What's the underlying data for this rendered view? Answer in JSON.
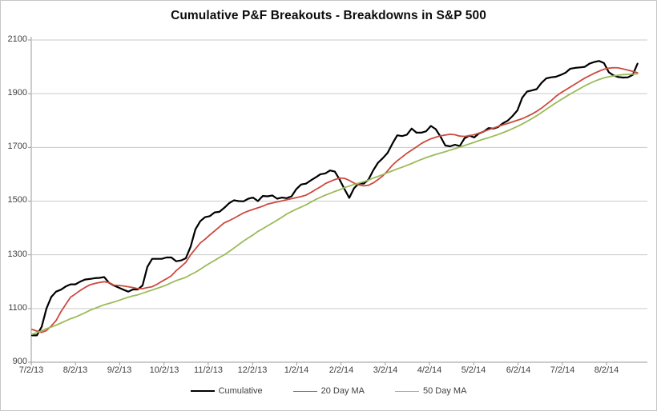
{
  "title": "Cumulative P&F Breakouts - Breakdowns in S&P 500",
  "chart_data": {
    "type": "line",
    "title": "Cumulative P&F Breakouts - Breakdowns in S&P 500",
    "xlabel": "",
    "ylabel": "",
    "ylim": [
      900,
      2100
    ],
    "grid": "horizontal",
    "legend_position": "bottom",
    "y_tick_labels": [
      2100,
      1900,
      1700,
      1500,
      1300,
      1100,
      900
    ],
    "x_tick_labels": [
      "7/2/13",
      "8/2/13",
      "9/2/13",
      "10/2/13",
      "11/2/13",
      "12/2/13",
      "1/2/14",
      "2/2/14",
      "3/2/14",
      "4/2/14",
      "5/2/14",
      "6/2/14",
      "7/2/14",
      "8/2/14"
    ],
    "sampling": {
      "t0": 0.018,
      "dt": 0.1086,
      "unit": "months-since-7/2/13"
    },
    "series": [
      {
        "name": "Cumulative",
        "color": "#000000",
        "width": 2.2,
        "values": [
          1000,
          1000,
          1032,
          1100,
          1143,
          1163,
          1170,
          1182,
          1190,
          1190,
          1200,
          1208,
          1210,
          1213,
          1214,
          1217,
          1196,
          1186,
          1178,
          1170,
          1163,
          1171,
          1171,
          1186,
          1255,
          1285,
          1285,
          1285,
          1290,
          1290,
          1276,
          1279,
          1287,
          1330,
          1395,
          1425,
          1440,
          1444,
          1458,
          1460,
          1475,
          1492,
          1503,
          1500,
          1499,
          1509,
          1513,
          1500,
          1519,
          1518,
          1521,
          1509,
          1513,
          1511,
          1518,
          1545,
          1562,
          1565,
          1577,
          1588,
          1600,
          1603,
          1614,
          1610,
          1580,
          1545,
          1512,
          1548,
          1566,
          1565,
          1580,
          1615,
          1643,
          1660,
          1680,
          1714,
          1745,
          1742,
          1747,
          1770,
          1755,
          1755,
          1760,
          1780,
          1768,
          1740,
          1707,
          1704,
          1710,
          1705,
          1734,
          1744,
          1737,
          1752,
          1759,
          1772,
          1770,
          1776,
          1790,
          1800,
          1817,
          1838,
          1885,
          1908,
          1912,
          1917,
          1940,
          1957,
          1961,
          1963,
          1970,
          1978,
          1993,
          1996,
          1998,
          2000,
          2012,
          2018,
          2022,
          2014,
          1980,
          1968,
          1962,
          1960,
          1961,
          1970,
          2012
        ]
      },
      {
        "name": "20 Day MA",
        "color": "#cc4a3f",
        "width": 1.8,
        "values": [
          1022,
          1016,
          1011,
          1018,
          1035,
          1055,
          1088,
          1115,
          1142,
          1154,
          1167,
          1178,
          1188,
          1193,
          1197,
          1200,
          1197,
          1187,
          1186,
          1184,
          1181,
          1178,
          1174,
          1174,
          1178,
          1181,
          1190,
          1201,
          1211,
          1222,
          1241,
          1256,
          1272,
          1300,
          1322,
          1344,
          1358,
          1374,
          1389,
          1404,
          1419,
          1427,
          1436,
          1446,
          1456,
          1463,
          1469,
          1475,
          1481,
          1489,
          1493,
          1497,
          1501,
          1505,
          1509,
          1513,
          1517,
          1522,
          1532,
          1543,
          1553,
          1565,
          1573,
          1580,
          1586,
          1585,
          1577,
          1567,
          1560,
          1557,
          1559,
          1568,
          1580,
          1594,
          1613,
          1634,
          1650,
          1664,
          1678,
          1690,
          1702,
          1714,
          1724,
          1732,
          1738,
          1743,
          1746,
          1749,
          1747,
          1742,
          1741,
          1744,
          1747,
          1753,
          1759,
          1766,
          1772,
          1778,
          1784,
          1789,
          1795,
          1801,
          1807,
          1815,
          1824,
          1834,
          1846,
          1860,
          1874,
          1890,
          1903,
          1914,
          1925,
          1936,
          1947,
          1958,
          1967,
          1976,
          1984,
          1991,
          1995,
          1997,
          1996,
          1992,
          1988,
          1983,
          1978
        ]
      },
      {
        "name": "50 Day MA",
        "color": "#9bbb59",
        "width": 1.8,
        "values": [
          1004,
          1010,
          1017,
          1025,
          1031,
          1038,
          1046,
          1054,
          1062,
          1068,
          1076,
          1084,
          1093,
          1100,
          1107,
          1114,
          1119,
          1124,
          1130,
          1136,
          1142,
          1147,
          1151,
          1157,
          1163,
          1169,
          1175,
          1181,
          1188,
          1196,
          1204,
          1210,
          1216,
          1226,
          1235,
          1246,
          1258,
          1269,
          1279,
          1290,
          1300,
          1312,
          1325,
          1338,
          1351,
          1363,
          1374,
          1387,
          1397,
          1408,
          1418,
          1429,
          1440,
          1452,
          1461,
          1470,
          1478,
          1486,
          1496,
          1506,
          1514,
          1522,
          1529,
          1536,
          1542,
          1550,
          1556,
          1562,
          1567,
          1572,
          1578,
          1586,
          1592,
          1599,
          1606,
          1613,
          1620,
          1626,
          1633,
          1640,
          1648,
          1655,
          1662,
          1668,
          1674,
          1679,
          1684,
          1690,
          1695,
          1701,
          1707,
          1713,
          1719,
          1725,
          1731,
          1736,
          1742,
          1748,
          1755,
          1762,
          1770,
          1778,
          1787,
          1797,
          1807,
          1818,
          1830,
          1842,
          1854,
          1866,
          1877,
          1888,
          1899,
          1909,
          1919,
          1929,
          1938,
          1946,
          1953,
          1959,
          1963,
          1966,
          1969,
          1971,
          1972,
          1973,
          1974
        ]
      }
    ],
    "colors": {
      "grid": "#c9c9c9",
      "axis": "#9a9a9a",
      "tick_text": "#3f3f3f"
    }
  }
}
